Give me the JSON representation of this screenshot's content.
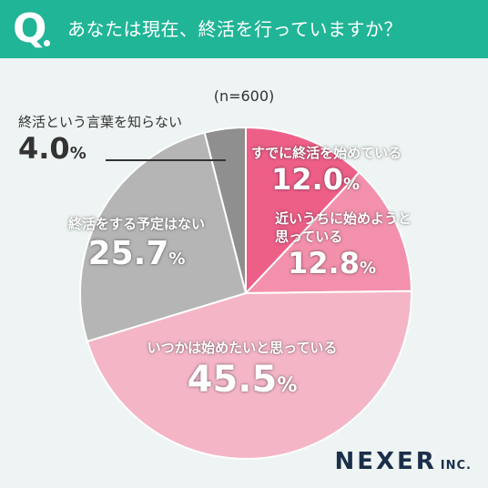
{
  "header": {
    "q_letter": "Q",
    "question": "あなたは現在、終活を行っていますか？",
    "background_color": "#20b596"
  },
  "sample_size": "(n=600)",
  "chart_data": {
    "type": "pie",
    "start": "12 o'clock, clockwise",
    "slices": [
      {
        "label": "すでに終活を始めている",
        "value": 12.0,
        "color": "#ee5f88"
      },
      {
        "label": "近いうちに始めようと思っている",
        "value": 12.8,
        "color": "#f391ac"
      },
      {
        "label": "いつかは始めたいと思っている",
        "value": 45.5,
        "color": "#f4b6c7"
      },
      {
        "label": "終活をする予定はない",
        "value": 25.7,
        "color": "#b5b5b5"
      },
      {
        "label": "終活という言葉を知らない",
        "value": 4.0,
        "color": "#8f8f8f"
      }
    ]
  },
  "labels": {
    "s1_line1": "すでに終活を始めている",
    "s1_value": "12.0",
    "s2_line1": "近いうちに始めようと",
    "s2_line2": "思っている",
    "s2_value": "12.8",
    "s3_line1": "いつかは始めたいと思っている",
    "s3_value": "45.5",
    "s4_line1": "終活をする予定はない",
    "s4_value": "25.7",
    "s5_line1": "終活という言葉を知らない",
    "s5_value": "4.0",
    "percent_sign": "%"
  },
  "logo": {
    "main": "NEXER",
    "sub": "INC."
  }
}
